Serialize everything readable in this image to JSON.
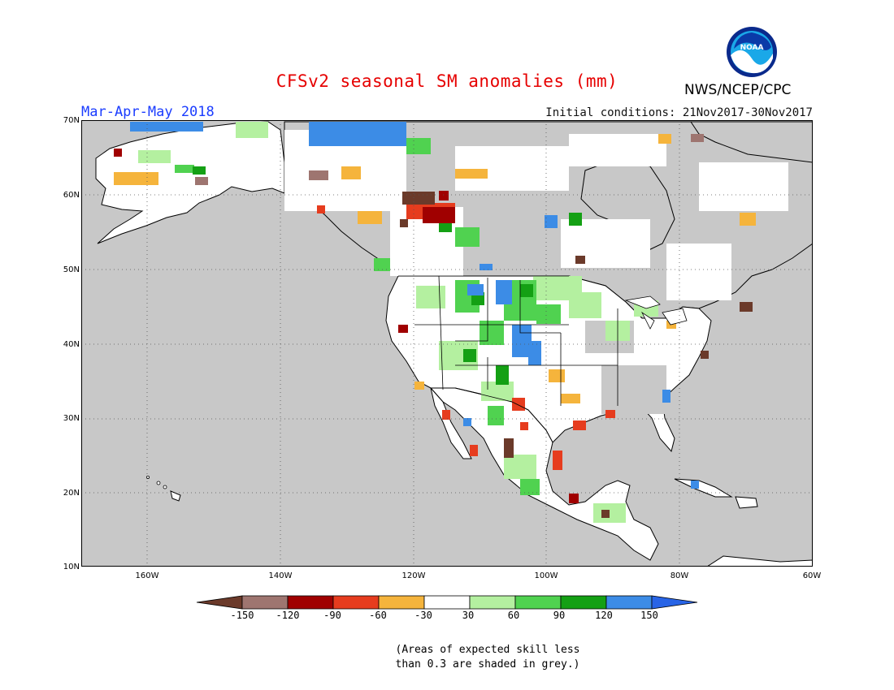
{
  "header": {
    "title": "CFSv2 seasonal SM anomalies (mm)",
    "season": "Mar-Apr-May 2018",
    "initial_conditions": "Initial conditions: 21Nov2017-30Nov2017",
    "agency": "NWS/NCEP/CPC",
    "logo_text": "NOAA"
  },
  "map": {
    "lat_labels": [
      "70N",
      "60N",
      "50N",
      "40N",
      "30N",
      "20N",
      "10N"
    ],
    "lon_labels": [
      "160W",
      "140W",
      "120W",
      "100W",
      "80W",
      "60W"
    ],
    "extent": {
      "lon_min": -170,
      "lon_max": -60,
      "lat_min": 10,
      "lat_max": 70
    },
    "ocean_color": "#c8c8c8"
  },
  "legend": {
    "tick_labels": [
      "-150",
      "-120",
      "-90",
      "-60",
      "-30",
      "30",
      "60",
      "90",
      "120",
      "150"
    ],
    "colors": [
      "#6b3a2a",
      "#9e7570",
      "#a00000",
      "#e63c1e",
      "#f5b43c",
      "#ffffff",
      "#b4f0a0",
      "#50d250",
      "#14a014",
      "#3c8ce6",
      "#2864e6"
    ]
  },
  "note": "(Areas of expected skill less\nthan 0.3 are shaded in grey.)"
}
